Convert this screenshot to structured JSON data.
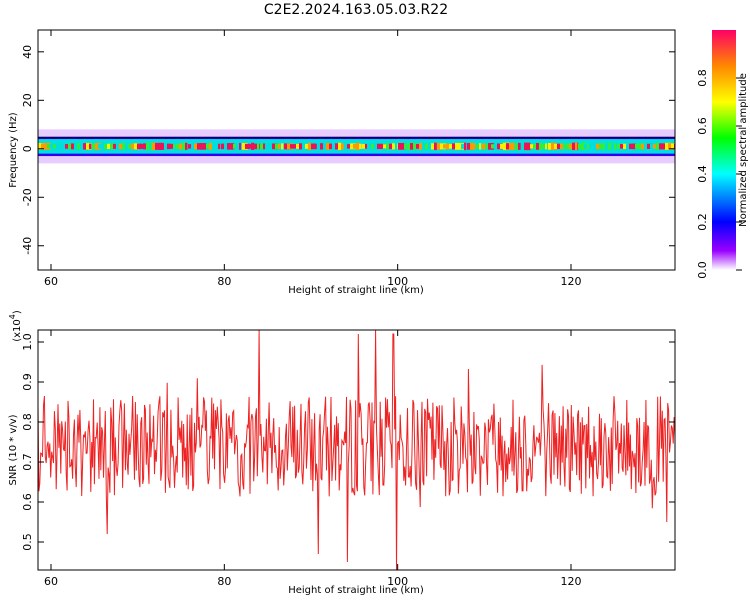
{
  "title": "C2E2.2024.163.05.03.R22",
  "chart_data": [
    {
      "type": "heatmap",
      "xlabel": "Height of straight line (km)",
      "ylabel": "Frequency (Hz)",
      "xlim": [
        58.5,
        132
      ],
      "ylim": [
        -50,
        49
      ],
      "xticks": [
        60,
        80,
        100,
        120
      ],
      "yticks": [
        -40,
        -20,
        0,
        20,
        40
      ],
      "band_center_hz": 1.0,
      "band_core_halfwidth_hz": 1.2,
      "band_halfwidth_hz": 4.0,
      "band_outer_halfwidth_hz": 7.0,
      "band_x_range": [
        58.5,
        132
      ]
    },
    {
      "type": "line",
      "xlabel": "Height of straight line (km)",
      "ylabel": "SNR (10 * v/v)",
      "yscale_label": "(x10",
      "yscale_exponent": "4",
      "yscale_close": ")",
      "xlim": [
        58.5,
        132
      ],
      "ylim": [
        0.43,
        1.03
      ],
      "xticks": [
        60,
        80,
        100,
        120
      ],
      "yticks": [
        0.5,
        0.6,
        0.7,
        0.8,
        0.9,
        1.0
      ],
      "color": "#ee2222",
      "series_summary": {
        "mean": 0.74,
        "typical_range": [
          0.6,
          0.88
        ],
        "peaks": [
          [
            84.0,
            1.03
          ],
          [
            95.5,
            1.02
          ],
          [
            97.5,
            1.03
          ],
          [
            99.5,
            1.02
          ]
        ],
        "dips": [
          [
            66.5,
            0.52
          ],
          [
            90.8,
            0.47
          ],
          [
            94.2,
            0.45
          ],
          [
            99.9,
            0.43
          ],
          [
            131.1,
            0.55
          ]
        ]
      }
    }
  ],
  "colorbar": {
    "label": "Normalized spectral amplitude",
    "range": [
      0,
      1
    ],
    "ticks": [
      "0.0",
      "0.2",
      "0.4",
      "0.6",
      "0.8"
    ]
  }
}
